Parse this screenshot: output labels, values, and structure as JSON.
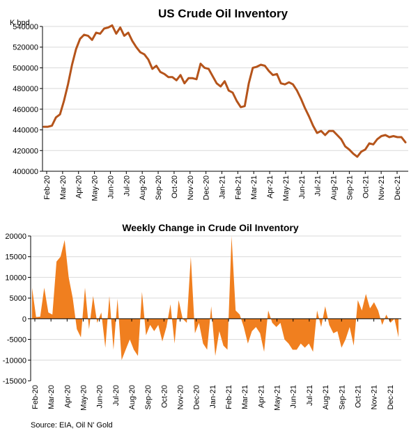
{
  "source": "Source: EIA, Oil N' Gold",
  "colors": {
    "line": "#b5541b",
    "area": "#f07f1f",
    "grid": "#d9d9d9"
  },
  "chart_data": [
    {
      "type": "line",
      "title": "US Crude Oil Inventory",
      "unit_label": "K bpd",
      "xlabel": "",
      "ylabel": "",
      "ylim": [
        400000,
        540000
      ],
      "yticks": [
        400000,
        420000,
        440000,
        460000,
        480000,
        500000,
        520000,
        540000
      ],
      "ytick_labels": [
        "400000",
        "420000",
        "440000",
        "460000",
        "480000",
        "500000",
        "520000",
        "540000"
      ],
      "x_tick_labels": [
        "Feb-20",
        "Mar-20",
        "Apr-20",
        "May-20",
        "Jun-20",
        "Jul-20",
        "Aug-20",
        "Sep-20",
        "Oct-20",
        "Nov-20",
        "Dec-20",
        "Jan-21",
        "Feb-21",
        "Mar-21",
        "Apr-21",
        "May-21",
        "Jun-21",
        "Jul-21",
        "Aug-21",
        "Sep-21",
        "Oct-21",
        "Nov-21",
        "Dec-21"
      ],
      "grid": true,
      "series": [
        {
          "values": [
            443000,
            443000,
            444000,
            452000,
            455000,
            468000,
            484000,
            503000,
            518000,
            528000,
            532000,
            531000,
            527000,
            534000,
            533000,
            538000,
            539000,
            541000,
            533000,
            539000,
            531000,
            534000,
            526000,
            520000,
            515000,
            513000,
            508000,
            499000,
            502000,
            496000,
            494000,
            491000,
            491000,
            488000,
            493000,
            485000,
            490000,
            490000,
            489000,
            504000,
            500000,
            499000,
            492000,
            485000,
            482000,
            487000,
            478000,
            476000,
            468000,
            462000,
            463000,
            485000,
            500000,
            501000,
            503000,
            502000,
            497000,
            493000,
            494000,
            485000,
            484000,
            486000,
            484000,
            478000,
            470000,
            461000,
            453000,
            444000,
            437000,
            439000,
            435000,
            439000,
            439000,
            435000,
            431000,
            424000,
            421000,
            417000,
            414000,
            419000,
            421000,
            427000,
            426000,
            431000,
            434000,
            435000,
            433000,
            434000,
            433000,
            433000,
            428000
          ]
        }
      ]
    },
    {
      "type": "area",
      "title": "Weekly Change in Crude Oil Inventory",
      "xlabel": "",
      "ylabel": "",
      "ylim": [
        -15000,
        20000
      ],
      "yticks": [
        -15000,
        -10000,
        -5000,
        0,
        5000,
        10000,
        15000,
        20000
      ],
      "ytick_labels": [
        "-15000",
        "-10000",
        "-5000",
        "0",
        "5000",
        "10000",
        "15000",
        "20000"
      ],
      "x_tick_labels": [
        "Feb-20",
        "Mar-20",
        "Apr-20",
        "May-20",
        "Jun-20",
        "Jul-20",
        "Aug-20",
        "Sep-20",
        "Oct-20",
        "Nov-20",
        "Dec-20",
        "Jan-21",
        "Feb-21",
        "Mar-21",
        "Apr-21",
        "May-21",
        "Jun-21",
        "Jul-21",
        "Aug-21",
        "Sep-21",
        "Oct-21",
        "Nov-21",
        "Dec-21"
      ],
      "grid": true,
      "series": [
        {
          "values": [
            7500,
            400,
            500,
            7500,
            1500,
            1000,
            13800,
            15000,
            19000,
            10000,
            5000,
            -2500,
            -4500,
            7500,
            -2500,
            5500,
            -1000,
            1500,
            -7000,
            5500,
            -7500,
            4800,
            -10000,
            -7500,
            -5000,
            -7500,
            -9000,
            6500,
            -4000,
            -1500,
            -3000,
            -1500,
            -5500,
            -2000,
            3500,
            -6000,
            4500,
            0,
            -1000,
            15000,
            -3500,
            -1000,
            -6000,
            -7500,
            3000,
            -9000,
            -3000,
            -6500,
            -7500,
            20000,
            2000,
            1000,
            -2000,
            -6000,
            -3000,
            -2000,
            -3500,
            -8000,
            2000,
            -1000,
            -2000,
            -1000,
            -5000,
            -6000,
            -7500,
            -7500,
            -6000,
            -7000,
            -6000,
            -8000,
            2000,
            -2000,
            3000,
            -1500,
            -3500,
            -3000,
            -7000,
            -5000,
            -2000,
            -6500,
            4500,
            2000,
            6000,
            2500,
            4000,
            2000,
            -1500,
            1000,
            -1000,
            0,
            -4500
          ]
        }
      ]
    }
  ]
}
